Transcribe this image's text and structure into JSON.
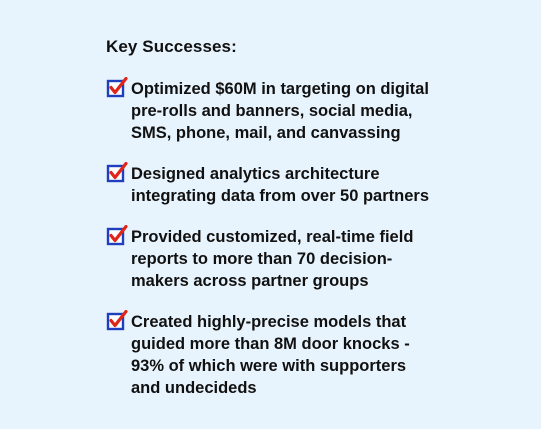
{
  "heading": "Key Successes:",
  "colors": {
    "background": "#e8f4fd",
    "check_box": "#1f3fbf",
    "check_mark": "#e0261b",
    "text": "#111111"
  },
  "items": [
    {
      "icon": "checked-box-icon",
      "lines": [
        "Optimized $60M in targeting on digital",
        "pre-rolls and banners, social media,",
        "SMS, phone, mail, and canvassing"
      ]
    },
    {
      "icon": "checked-box-icon",
      "lines": [
        "Designed analytics architecture",
        "integrating data from over 50 partners"
      ]
    },
    {
      "icon": "checked-box-icon",
      "lines": [
        "Provided customized, real-time field",
        "reports to more than 70 decision-",
        "makers across partner groups"
      ]
    },
    {
      "icon": "checked-box-icon",
      "lines": [
        "Created highly-precise models that",
        "guided more than 8M door knocks -",
        "93% of which were with supporters",
        "and undecideds"
      ]
    }
  ]
}
